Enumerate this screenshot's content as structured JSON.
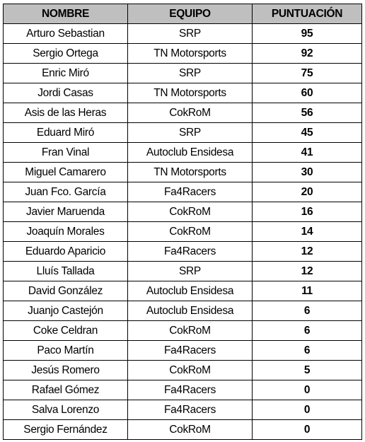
{
  "table": {
    "headers": {
      "name": "NOMBRE",
      "team": "EQUIPO",
      "points": "PUNTUACIÓN"
    },
    "header_bg": "#bfbfbf",
    "rows": [
      {
        "name": "Arturo Sebastian",
        "team": "SRP",
        "points": "95"
      },
      {
        "name": "Sergio Ortega",
        "team": "TN Motorsports",
        "points": "92"
      },
      {
        "name": "Enric Miró",
        "team": "SRP",
        "points": "75"
      },
      {
        "name": "Jordi Casas",
        "team": "TN Motorsports",
        "points": "60"
      },
      {
        "name": "Asis de las Heras",
        "team": "CokRoM",
        "points": "56"
      },
      {
        "name": "Eduard Miró",
        "team": "SRP",
        "points": "45"
      },
      {
        "name": "Fran Vinal",
        "team": "Autoclub Ensidesa",
        "points": "41"
      },
      {
        "name": "Miguel Camarero",
        "team": "TN Motorsports",
        "points": "30"
      },
      {
        "name": "Juan Fco. García",
        "team": "Fa4Racers",
        "points": "20"
      },
      {
        "name": "Javier Maruenda",
        "team": "CokRoM",
        "points": "16"
      },
      {
        "name": "Joaquín Morales",
        "team": "CokRoM",
        "points": "14"
      },
      {
        "name": "Eduardo Aparicio",
        "team": "Fa4Racers",
        "points": "12"
      },
      {
        "name": "Lluís Tallada",
        "team": "SRP",
        "points": "12"
      },
      {
        "name": "David González",
        "team": "Autoclub Ensidesa",
        "points": "11"
      },
      {
        "name": "Juanjo Castejón",
        "team": "Autoclub Ensidesa",
        "points": "6"
      },
      {
        "name": "Coke Celdran",
        "team": "CokRoM",
        "points": "6"
      },
      {
        "name": "Paco Martín",
        "team": "Fa4Racers",
        "points": "6"
      },
      {
        "name": "Jesús Romero",
        "team": "CokRoM",
        "points": "5"
      },
      {
        "name": "Rafael Gómez",
        "team": "Fa4Racers",
        "points": "0"
      },
      {
        "name": "Salva Lorenzo",
        "team": "Fa4Racers",
        "points": "0"
      },
      {
        "name": "Sergio Fernández",
        "team": "CokRoM",
        "points": "0"
      }
    ]
  }
}
